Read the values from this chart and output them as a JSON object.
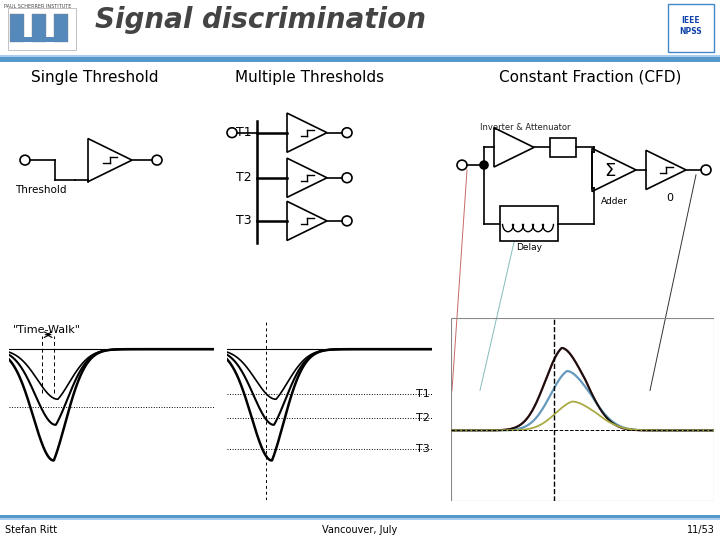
{
  "title": "Signal discrimination",
  "bg_color": "#ffffff",
  "header_line_color": "#5599cc",
  "title_color": "#444444",
  "title_fontsize": 20,
  "section_titles": [
    "Single Threshold",
    "Multiple Thresholds",
    "Constant Fraction (CFD)"
  ],
  "section_title_fontsize": 11,
  "footer_left": "Stefan Ritt",
  "footer_center": "Vancouver, July",
  "footer_right": "11/53",
  "threshold_label": "Threshold",
  "time_walk_label": "\"Time-Walk\"",
  "inverter_label": "Inverter & Attenuator",
  "delay_label": "Delay",
  "adder_label": "Adder",
  "t1_label": "T1",
  "t2_label": "T2",
  "t3_label": "T3",
  "color_red": "#bb4444",
  "color_blue": "#6699bb",
  "color_teal": "#66aaaa",
  "color_olive": "#aaaa44",
  "color_black": "#111111"
}
